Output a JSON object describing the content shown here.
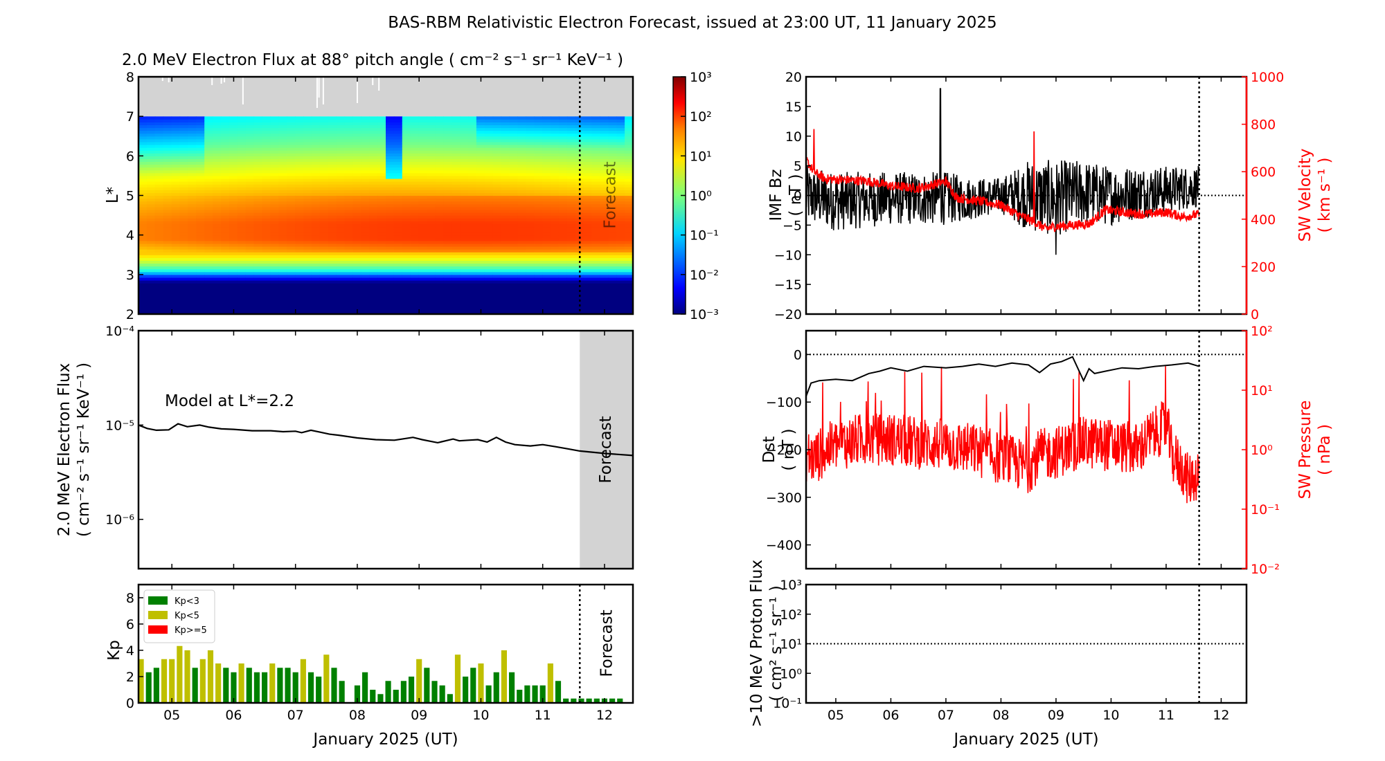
{
  "figure": {
    "title": "BAS-RBM Relativistic Electron Forecast, issued at 23:00 UT, 11 January 2025",
    "forecast_label": "Forecast",
    "xlabel": "January 2025 (UT)"
  },
  "chart_data": [
    {
      "id": "heatmap",
      "type": "heatmap",
      "title": "2.0 MeV Electron Flux at 88° pitch angle ( cm⁻² s⁻¹ sr⁻¹ KeV⁻¹ )",
      "ylabel": "L*",
      "ylim": [
        2,
        8
      ],
      "yticks": [
        "2",
        "3",
        "4",
        "5",
        "6",
        "7",
        "8"
      ],
      "xlim_days": [
        4.46,
        12.46
      ],
      "forecast_start_day": 11.6,
      "no_data_above_L": 7,
      "no_data_color": "#d3d3d3",
      "colorbar": {
        "scale": "log",
        "range": [
          0.001,
          1000
        ],
        "ticks": [
          "10⁻³",
          "10⁻²",
          "10⁻¹",
          "10⁰",
          "10¹",
          "10²",
          "10³"
        ],
        "colormap": "jet"
      },
      "profile_log10_by_L": [
        {
          "L": 2.0,
          "v": -3.0
        },
        {
          "L": 2.8,
          "v": -3.0
        },
        {
          "L": 2.95,
          "v": -2.0
        },
        {
          "L": 3.1,
          "v": -0.6
        },
        {
          "L": 3.3,
          "v": 0.3
        },
        {
          "L": 3.5,
          "v": 1.0
        },
        {
          "L": 3.9,
          "v": 1.6
        },
        {
          "L": 4.3,
          "v": 1.6
        },
        {
          "L": 4.8,
          "v": 1.3
        },
        {
          "L": 5.3,
          "v": 0.9
        },
        {
          "L": 5.8,
          "v": 0.4
        },
        {
          "L": 6.3,
          "v": -0.2
        },
        {
          "L": 7.0,
          "v": -0.8
        }
      ]
    },
    {
      "id": "flux-L2.2",
      "type": "line",
      "annotation": "Model at L*=2.2",
      "ylabel": "2.0 MeV Electron Flux",
      "ylabel_units": "( cm⁻² s⁻¹ sr⁻¹ KeV⁻¹ )",
      "yscale": "log",
      "ylim": [
        3e-07,
        0.0001
      ],
      "yticks": [
        "10⁻⁶",
        "10⁻⁵",
        "10⁻⁴"
      ],
      "x_days": [
        4.46,
        4.6,
        4.75,
        4.95,
        5.1,
        5.25,
        5.45,
        5.6,
        5.8,
        6.0,
        6.3,
        6.6,
        6.8,
        7.0,
        7.1,
        7.25,
        7.4,
        7.55,
        7.7,
        8.0,
        8.3,
        8.6,
        8.9,
        9.05,
        9.3,
        9.55,
        9.65,
        9.8,
        9.95,
        10.1,
        10.25,
        10.4,
        10.55,
        10.8,
        11.0,
        11.2,
        11.4,
        11.6,
        12.0,
        12.46
      ],
      "values": [
        1e-05,
        9.2e-06,
        8.8e-06,
        8.9e-06,
        1.03e-05,
        9.6e-06,
        1e-05,
        9.5e-06,
        9.1e-06,
        9e-06,
        8.7e-06,
        8.7e-06,
        8.5e-06,
        8.6e-06,
        8.3e-06,
        8.8e-06,
        8.4e-06,
        8e-06,
        7.8e-06,
        7.3e-06,
        7e-06,
        6.9e-06,
        7.4e-06,
        7e-06,
        6.5e-06,
        7.1e-06,
        6.8e-06,
        6.9e-06,
        7e-06,
        6.6e-06,
        7.4e-06,
        6.6e-06,
        6.2e-06,
        6e-06,
        6.2e-06,
        5.9e-06,
        5.6e-06,
        5.3e-06,
        5e-06,
        4.75e-06
      ]
    },
    {
      "id": "kp",
      "type": "bar",
      "ylabel": "Kp",
      "ylim": [
        0,
        9
      ],
      "yticks": [
        "0",
        "2",
        "4",
        "6",
        "8"
      ],
      "bar_interval_hours": 3,
      "first_bar_day": 4.5,
      "legend": [
        {
          "label": "Kp<3",
          "color": "#008000"
        },
        {
          "label": "Kp<5",
          "color": "#bfbf00"
        },
        {
          "label": "Kp>=5",
          "color": "#ff0000"
        }
      ],
      "legend_position": "upper-left",
      "values": [
        3.33,
        2.33,
        2.67,
        3.33,
        3.33,
        4.33,
        4.0,
        2.67,
        3.33,
        4.0,
        3.0,
        2.67,
        2.33,
        3.0,
        2.67,
        2.33,
        2.33,
        3.0,
        2.67,
        2.67,
        2.33,
        3.33,
        2.33,
        2.0,
        3.67,
        2.67,
        1.67,
        0,
        1.33,
        2.33,
        1.0,
        0.67,
        1.67,
        1.0,
        1.67,
        2.0,
        3.33,
        2.67,
        1.67,
        1.33,
        0.67,
        3.67,
        2.0,
        2.67,
        3.0,
        1.33,
        2.33,
        4.0,
        2.33,
        1.0,
        1.33,
        1.33,
        1.33,
        3.0,
        1.67
      ],
      "forecast_values": [
        0.33,
        0.33,
        0.33,
        0.33,
        0.33,
        0.33,
        0.33,
        0.33
      ]
    },
    {
      "id": "imf-sw",
      "type": "line",
      "ylabel": "IMF Bz",
      "ylabel_units": "( nT )",
      "ylim": [
        -20,
        20
      ],
      "yticks": [
        "−20",
        "−15",
        "−10",
        "−5",
        "0",
        "5",
        "10",
        "15",
        "20"
      ],
      "y2label": "SW Velocity",
      "y2label_units": "( km s⁻¹ )",
      "y2lim": [
        0,
        1000
      ],
      "y2ticks": [
        "0",
        "200",
        "400",
        "600",
        "800",
        "1000"
      ],
      "series": [
        {
          "name": "IMF Bz",
          "color": "#000000",
          "range_nT": [
            -10,
            18
          ],
          "typical_envelope": [
            [
              4.46,
              -5,
              5
            ],
            [
              5.0,
              -6,
              4
            ],
            [
              6.0,
              -5,
              4
            ],
            [
              7.0,
              -5,
              4
            ],
            [
              7.5,
              -4,
              3
            ],
            [
              8.0,
              -3,
              3
            ],
            [
              8.5,
              -6,
              6
            ],
            [
              9.0,
              -7,
              6
            ],
            [
              9.5,
              -5,
              6
            ],
            [
              10.0,
              -5,
              5
            ],
            [
              10.5,
              -4,
              5
            ],
            [
              11.0,
              -3,
              5
            ],
            [
              11.6,
              -2,
              5
            ]
          ],
          "spike": {
            "day": 6.9,
            "value": 18
          },
          "min": {
            "day": 9.0,
            "value": -10
          }
        },
        {
          "name": "SW Velocity",
          "color": "#ff0000",
          "x_days": [
            4.46,
            4.6,
            4.8,
            5.2,
            5.6,
            6.0,
            6.5,
            7.0,
            7.2,
            7.5,
            8.0,
            8.3,
            8.6,
            8.8,
            9.0,
            9.3,
            9.6,
            9.9,
            10.2,
            10.6,
            11.0,
            11.3,
            11.6
          ],
          "values": [
            650,
            600,
            570,
            565,
            560,
            540,
            530,
            560,
            490,
            480,
            460,
            420,
            390,
            360,
            370,
            375,
            380,
            440,
            430,
            420,
            430,
            410,
            420
          ],
          "spikes": [
            {
              "day": 4.6,
              "value": 780
            },
            {
              "day": 8.6,
              "value": 770
            }
          ]
        }
      ],
      "reference_line": {
        "axis": "y",
        "value": 0
      }
    },
    {
      "id": "dst-pressure",
      "type": "line",
      "ylabel": "Dst",
      "ylabel_units": "( nT )",
      "ylim": [
        -450,
        50
      ],
      "yticks": [
        "−400",
        "−300",
        "−200",
        "−100",
        "0"
      ],
      "y2label": "SW Pressure",
      "y2label_units": "( nPa )",
      "y2scale": "log",
      "y2lim": [
        0.01,
        100
      ],
      "y2ticks": [
        "10⁻²",
        "10⁻¹",
        "10⁰",
        "10¹",
        "10²"
      ],
      "series": [
        {
          "name": "Dst",
          "color": "#000000",
          "x_days": [
            4.46,
            4.55,
            4.7,
            5.0,
            5.3,
            5.6,
            5.8,
            6.0,
            6.3,
            6.6,
            7.0,
            7.3,
            7.6,
            7.9,
            8.2,
            8.5,
            8.7,
            8.9,
            9.1,
            9.3,
            9.5,
            9.6,
            9.7,
            9.9,
            10.2,
            10.5,
            10.8,
            11.1,
            11.4,
            11.6
          ],
          "values": [
            -88,
            -60,
            -55,
            -52,
            -55,
            -40,
            -35,
            -28,
            -35,
            -25,
            -28,
            -25,
            -20,
            -25,
            -18,
            -22,
            -38,
            -20,
            -15,
            -5,
            -55,
            -30,
            -40,
            -35,
            -28,
            -30,
            -25,
            -22,
            -18,
            -25
          ]
        },
        {
          "name": "SW Pressure",
          "color": "#ff0000",
          "typical_nPa": 1.0,
          "range_nPa": [
            0.04,
            45
          ],
          "x_days": [
            4.46,
            4.6,
            5.0,
            5.5,
            6.0,
            6.5,
            7.0,
            7.5,
            8.0,
            8.5,
            8.7,
            9.0,
            9.5,
            10.0,
            10.5,
            11.0,
            11.1,
            11.4,
            11.6
          ],
          "values": [
            0.8,
            0.7,
            1.2,
            1.5,
            1.5,
            1.3,
            1.2,
            1.0,
            0.7,
            0.5,
            0.8,
            0.9,
            1.3,
            1.2,
            1.0,
            2.5,
            0.8,
            0.3,
            0.4
          ]
        }
      ],
      "reference_line": {
        "axis": "y",
        "value": 0
      }
    },
    {
      "id": "proton",
      "type": "line",
      "ylabel": ">10 MeV Proton Flux",
      "ylabel_units": "( cm² s⁻¹ sr⁻¹ )",
      "yscale": "log",
      "ylim": [
        0.1,
        1000
      ],
      "yticks": [
        "10⁻¹",
        "10⁰",
        "10¹",
        "10²",
        "10³"
      ],
      "series": [],
      "reference_line": {
        "axis": "y",
        "value": 10
      }
    }
  ],
  "xaxis": {
    "xlim_days": [
      4.46,
      12.46
    ],
    "ticks": [
      {
        "day": 5,
        "label": "05"
      },
      {
        "day": 6,
        "label": "06"
      },
      {
        "day": 7,
        "label": "07"
      },
      {
        "day": 8,
        "label": "08"
      },
      {
        "day": 9,
        "label": "09"
      },
      {
        "day": 10,
        "label": "10"
      },
      {
        "day": 11,
        "label": "11"
      },
      {
        "day": 12,
        "label": "12"
      }
    ],
    "forecast_start_day": 11.6,
    "data_end_day": 11.6
  }
}
